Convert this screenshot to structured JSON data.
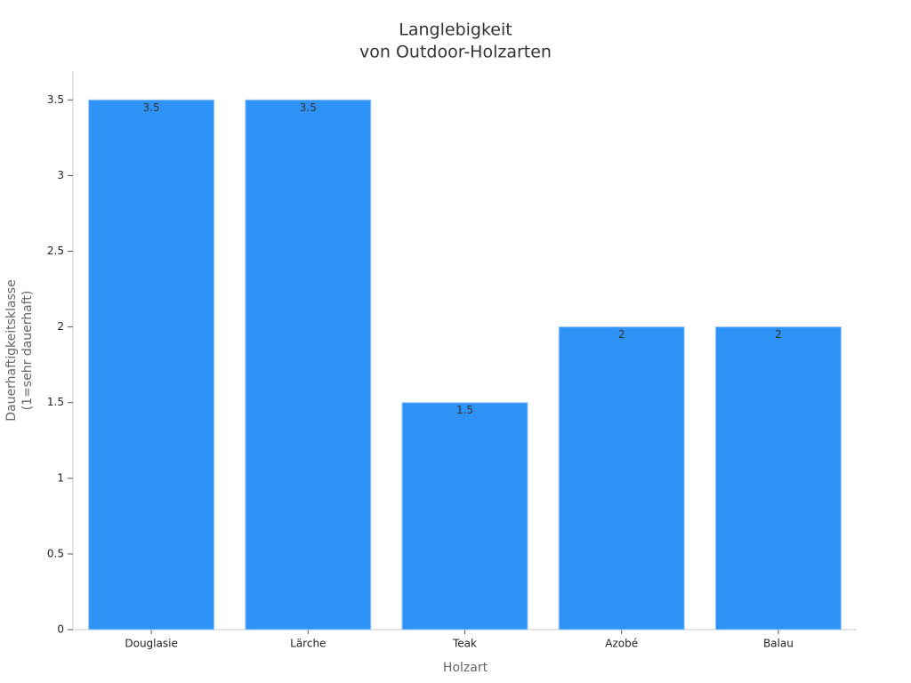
{
  "chart_data": {
    "type": "bar",
    "title": [
      "Langlebigkeit",
      "von Outdoor-Holzarten"
    ],
    "x_label": "Holzart",
    "y_label": [
      "Dauerhaftigkeitsklasse",
      "(1=sehr dauerhaft)"
    ],
    "categories": [
      "Douglasie",
      "Lärche",
      "Teak",
      "Azobé",
      "Balau"
    ],
    "values": [
      3.5,
      3.5,
      1.5,
      2,
      2
    ],
    "color": "#2f92f7",
    "ylim": [
      0,
      3.69
    ],
    "yticks": [
      0,
      0.5,
      1,
      1.5,
      2,
      2.5,
      3,
      3.5
    ],
    "grid": false
  }
}
